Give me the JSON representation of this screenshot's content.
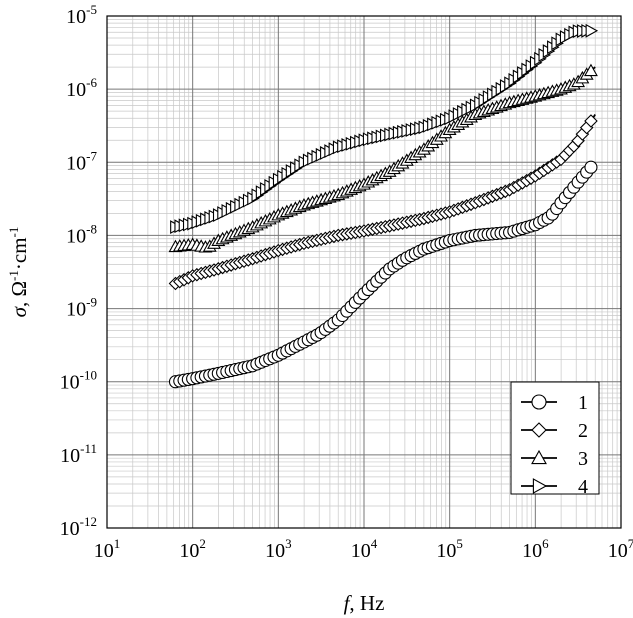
{
  "chart_data": {
    "type": "scatter",
    "title": "",
    "xlabel": {
      "symbol": "f",
      "unit": ", Hz"
    },
    "ylabel": {
      "symbol": "σ",
      "unit": ", Ω",
      "unit_sup1": "-1",
      "unit_mid": "·cm",
      "unit_sup2": "-1"
    },
    "x_scale": "log",
    "y_scale": "log",
    "xlim": [
      10,
      10000000
    ],
    "ylim": [
      1e-12,
      1e-05
    ],
    "grid": true,
    "legend_position": "bottom-right",
    "x_ticks": [
      {
        "base": "10",
        "exp": "1"
      },
      {
        "base": "10",
        "exp": "2"
      },
      {
        "base": "10",
        "exp": "3"
      },
      {
        "base": "10",
        "exp": "4"
      },
      {
        "base": "10",
        "exp": "5"
      },
      {
        "base": "10",
        "exp": "6"
      },
      {
        "base": "10",
        "exp": "7"
      }
    ],
    "y_ticks": [
      {
        "base": "10",
        "exp": "-12"
      },
      {
        "base": "10",
        "exp": "-11"
      },
      {
        "base": "10",
        "exp": "-10"
      },
      {
        "base": "10",
        "exp": "-9"
      },
      {
        "base": "10",
        "exp": "-8"
      },
      {
        "base": "10",
        "exp": "-7"
      },
      {
        "base": "10",
        "exp": "-6"
      },
      {
        "base": "10",
        "exp": "-5"
      }
    ],
    "series": [
      {
        "name": "1",
        "marker": "circle",
        "points": [
          [
            63,
            1e-10
          ],
          [
            100,
            1.1e-10
          ],
          [
            200,
            1.3e-10
          ],
          [
            500,
            1.65e-10
          ],
          [
            1000,
            2.3e-10
          ],
          [
            2000,
            3.5e-10
          ],
          [
            3000,
            4.5e-10
          ],
          [
            5000,
            7e-10
          ],
          [
            10000,
            1.6e-09
          ],
          [
            20000,
            3.5e-09
          ],
          [
            30000,
            4.8e-09
          ],
          [
            50000,
            6.5e-09
          ],
          [
            100000,
            8.5e-09
          ],
          [
            200000,
            1e-08
          ],
          [
            500000,
            1.1e-08
          ],
          [
            1000000,
            1.4e-08
          ],
          [
            1500000,
            1.8e-08
          ],
          [
            2000000,
            2.8e-08
          ],
          [
            3000000,
            5e-08
          ],
          [
            5000000,
            1e-07
          ]
        ]
      },
      {
        "name": "2",
        "marker": "diamond",
        "points": [
          [
            63,
            2.2e-09
          ],
          [
            100,
            2.8e-09
          ],
          [
            200,
            3.5e-09
          ],
          [
            500,
            4.8e-09
          ],
          [
            1000,
            6.2e-09
          ],
          [
            2000,
            7.8e-09
          ],
          [
            5000,
            1e-08
          ],
          [
            10000,
            1.15e-08
          ],
          [
            20000,
            1.35e-08
          ],
          [
            50000,
            1.7e-08
          ],
          [
            100000,
            2.1e-08
          ],
          [
            200000,
            2.8e-08
          ],
          [
            500000,
            4.2e-08
          ],
          [
            1000000,
            6.5e-08
          ],
          [
            2000000,
            1.1e-07
          ],
          [
            3000000,
            1.8e-07
          ],
          [
            5000000,
            4.5e-07
          ]
        ]
      },
      {
        "name": "3",
        "marker": "triangle-up",
        "points": [
          [
            63,
            7e-09
          ],
          [
            100,
            7.5e-09
          ],
          [
            150,
            6.8e-09
          ],
          [
            200,
            8.5e-09
          ],
          [
            500,
            1.3e-08
          ],
          [
            1000,
            1.9e-08
          ],
          [
            2000,
            2.6e-08
          ],
          [
            5000,
            3.6e-08
          ],
          [
            10000,
            5e-08
          ],
          [
            20000,
            7.5e-08
          ],
          [
            50000,
            1.5e-07
          ],
          [
            100000,
            2.8e-07
          ],
          [
            200000,
            4.5e-07
          ],
          [
            500000,
            6.5e-07
          ],
          [
            1000000,
            8e-07
          ],
          [
            2000000,
            1e-06
          ],
          [
            3000000,
            1.2e-06
          ],
          [
            5000000,
            2e-06
          ]
        ]
      },
      {
        "name": "4",
        "marker": "triangle-right",
        "points": [
          [
            63,
            1.3e-08
          ],
          [
            100,
            1.45e-08
          ],
          [
            200,
            1.9e-08
          ],
          [
            500,
            3.2e-08
          ],
          [
            1000,
            5.8e-08
          ],
          [
            2000,
            1e-07
          ],
          [
            5000,
            1.6e-07
          ],
          [
            10000,
            2e-07
          ],
          [
            20000,
            2.4e-07
          ],
          [
            50000,
            3e-07
          ],
          [
            100000,
            4e-07
          ],
          [
            200000,
            6e-07
          ],
          [
            500000,
            1.2e-06
          ],
          [
            1000000,
            2.3e-06
          ],
          [
            2000000,
            4.8e-06
          ],
          [
            3000000,
            6.2e-06
          ],
          [
            5000000,
            6.3e-06
          ]
        ]
      }
    ]
  }
}
